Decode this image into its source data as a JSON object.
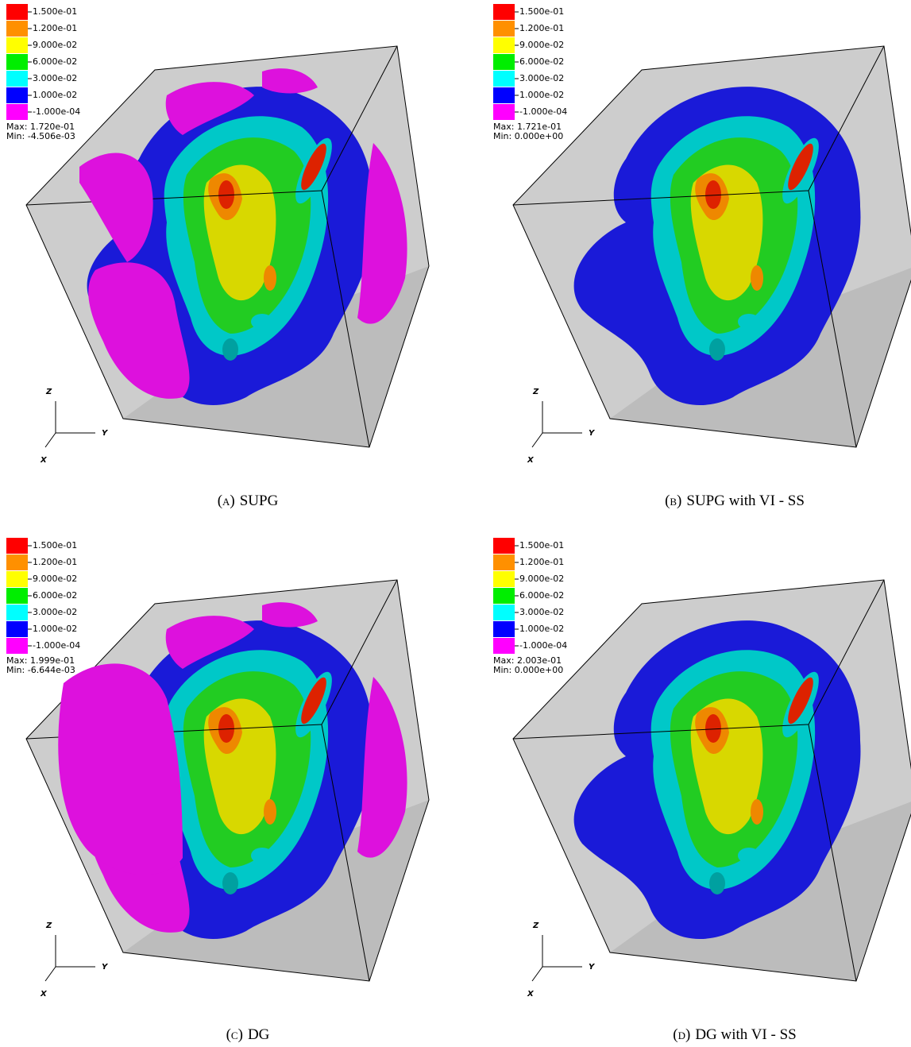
{
  "legend": [
    {
      "label": "1.500e-01",
      "color": "#ff0000"
    },
    {
      "label": "1.200e-01",
      "color": "#ff9000"
    },
    {
      "label": "9.000e-02",
      "color": "#ffff00"
    },
    {
      "label": "6.000e-02",
      "color": "#00ee00"
    },
    {
      "label": "3.000e-02",
      "color": "#00ffff"
    },
    {
      "label": "1.000e-02",
      "color": "#0000ff"
    },
    {
      "label": "-1.000e-04",
      "color": "#ff00ff"
    }
  ],
  "panels": [
    {
      "max": "Max: 1.720e-01",
      "min": "Min: -4.506e-03",
      "axes": [
        "Z",
        "Y",
        "X"
      ],
      "caption_label": "(a)",
      "caption": "SUPG"
    },
    {
      "max": "Max: 1.721e-01",
      "min": "Min: 0.000e+00",
      "axes": [
        "Z",
        "Y",
        "X"
      ],
      "caption_label": "(b)",
      "caption": "SUPG with VI - SS"
    },
    {
      "max": "Max: 1.999e-01",
      "min": "Min: -6.644e-03",
      "axes": [
        "Z",
        "Y",
        "X"
      ],
      "caption_label": "(c)",
      "caption": "DG"
    },
    {
      "max": "Max: 2.003e-01",
      "min": "Min: 0.000e+00",
      "axes": [
        "Z",
        "Y",
        "X"
      ],
      "caption_label": "(d)",
      "caption": "DG with VI - SS"
    }
  ]
}
